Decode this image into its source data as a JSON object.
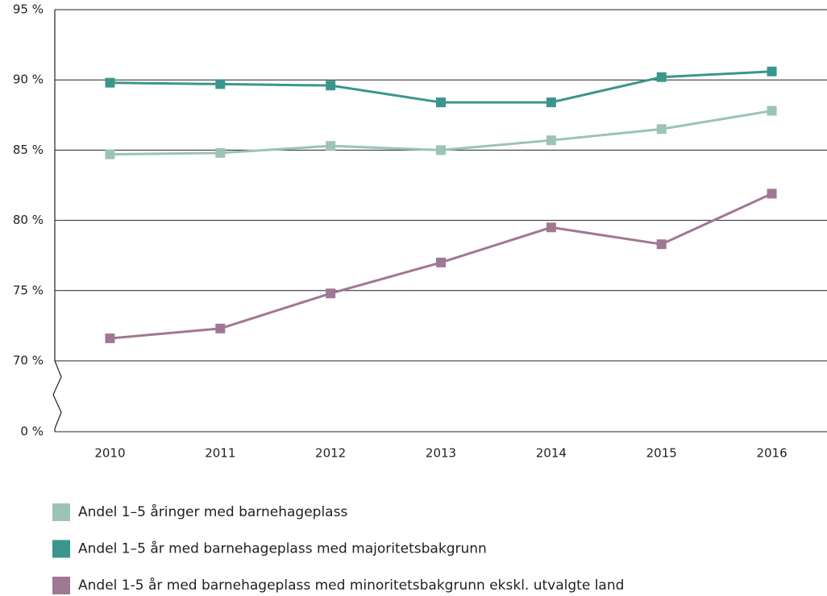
{
  "chart_data": {
    "type": "line",
    "categories": [
      "2010",
      "2011",
      "2012",
      "2013",
      "2014",
      "2015",
      "2016"
    ],
    "series": [
      {
        "name": "Andel 1–5 åringer med barnehageplass",
        "color": "#9cc3b8",
        "values": [
          84.7,
          84.8,
          85.3,
          85.0,
          85.7,
          86.5,
          87.8
        ]
      },
      {
        "name": "Andel 1–5 år med barnehageplass med majoritetsbakgrunn",
        "color": "#3a968d",
        "values": [
          89.8,
          89.7,
          89.6,
          88.4,
          88.4,
          90.2,
          90.6
        ]
      },
      {
        "name": "Andel 1-5 år med barnehageplass med minoritetsbakgrunn ekskl. utvalgte land",
        "color": "#a07893",
        "values": [
          71.6,
          72.3,
          74.8,
          77.0,
          79.5,
          78.3,
          81.9
        ]
      }
    ],
    "ylim": [
      0,
      95
    ],
    "y_break": [
      0,
      70
    ],
    "yticks": [
      {
        "value": 0,
        "label": "0 %"
      },
      {
        "value": 70,
        "label": "70 %"
      },
      {
        "value": 75,
        "label": "75 %"
      },
      {
        "value": 80,
        "label": "80 %"
      },
      {
        "value": 85,
        "label": "85 %"
      },
      {
        "value": 90,
        "label": "90 %"
      },
      {
        "value": 95,
        "label": "95 %"
      }
    ],
    "grid": true,
    "legend": "bottom"
  }
}
